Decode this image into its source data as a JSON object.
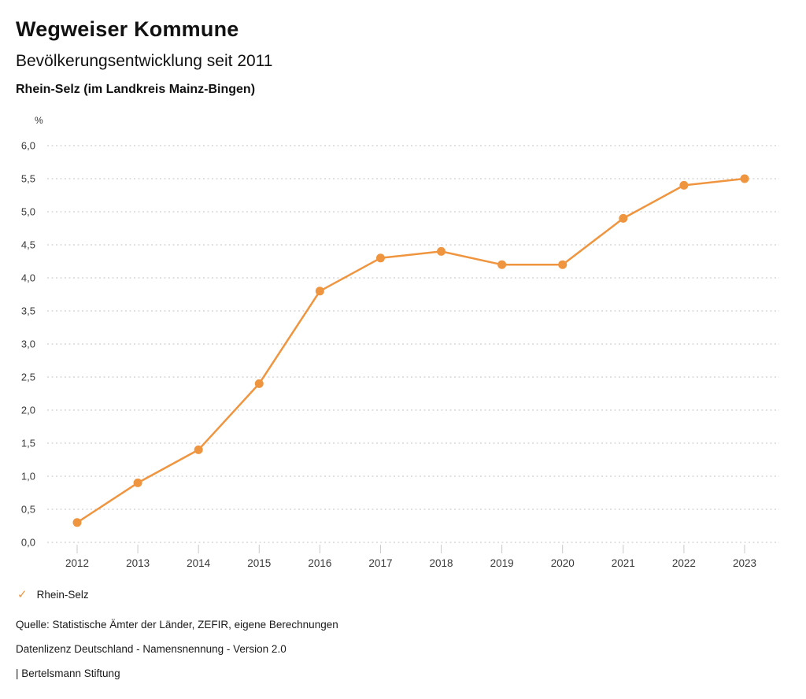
{
  "header": {
    "title": "Wegweiser Kommune",
    "subtitle": "Bevölkerungsentwicklung seit 2011",
    "region": "Rhein-Selz (im Landkreis Mainz-Bingen)"
  },
  "chart_data": {
    "type": "line",
    "title": "Bevölkerungsentwicklung seit 2011",
    "unit_label": "%",
    "categories": [
      "2012",
      "2013",
      "2014",
      "2015",
      "2016",
      "2017",
      "2018",
      "2019",
      "2020",
      "2021",
      "2022",
      "2023"
    ],
    "series": [
      {
        "name": "Rhein-Selz",
        "color": "#F0953F",
        "values": [
          0.3,
          0.9,
          1.4,
          2.4,
          3.8,
          4.3,
          4.4,
          4.2,
          4.2,
          4.9,
          5.4,
          5.5
        ]
      }
    ],
    "ylim": [
      0,
      6
    ],
    "ytick_step": 0.5,
    "ytick_labels": [
      "0,0",
      "0,5",
      "1,0",
      "1,5",
      "2,0",
      "2,5",
      "3,0",
      "3,5",
      "4,0",
      "4,5",
      "5,0",
      "5,5",
      "6,0"
    ],
    "grid": "horizontal-dotted",
    "gridline_color": "#c3c3c3",
    "tick_color": "#c9c9c9",
    "axis_text_color": "#3a3a3a",
    "legend_position": "bottom-left"
  },
  "legend": {
    "check_icon": "✓",
    "label": "Rhein-Selz"
  },
  "footer": {
    "source": "Quelle: Statistische Ämter der Länder, ZEFIR, eigene Berechnungen",
    "license": "Datenlizenz Deutschland - Namensnennung - Version 2.0",
    "attribution": "| Bertelsmann Stiftung"
  }
}
